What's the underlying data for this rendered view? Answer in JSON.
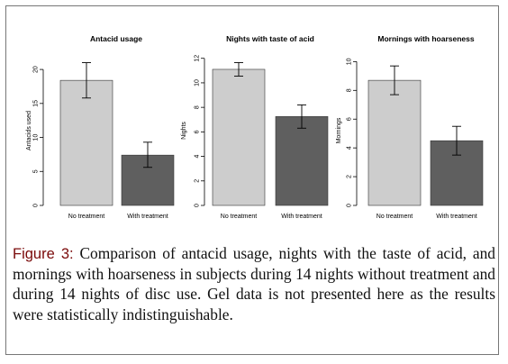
{
  "colors": {
    "no_treatment_bar": "#cdcdcd",
    "with_treatment_bar": "#5f5f5f",
    "frame": "#777777",
    "caption_lead": "#7a0a0a"
  },
  "caption": {
    "lead": "Figure 3:",
    "text": " Comparison of antacid usage, nights with the taste of acid, and mornings with hoarseness in subjects during 14 nights without treatment and during 14 nights of disc use. Gel data is not presented here as the results were statistically indistinguishable."
  },
  "chart_data": [
    {
      "type": "bar",
      "title": "Antacid usage",
      "ylabel": "Antacids used",
      "xlabel": "",
      "categories": [
        "No treatment",
        "With treatment"
      ],
      "values": [
        18.4,
        7.4
      ],
      "error_low": [
        15.8,
        5.6
      ],
      "error_high": [
        21.0,
        9.3
      ],
      "ylim": [
        0,
        22
      ],
      "yticks": [
        0,
        5,
        10,
        15,
        20
      ]
    },
    {
      "type": "bar",
      "title": "Nights with taste of acid",
      "ylabel": "Nights",
      "xlabel": "",
      "categories": [
        "No treatment",
        "With treatment"
      ],
      "values": [
        11.1,
        7.25
      ],
      "error_low": [
        10.55,
        6.3
      ],
      "error_high": [
        11.65,
        8.2
      ],
      "ylim": [
        0,
        12.2
      ],
      "yticks": [
        0,
        2,
        4,
        6,
        8,
        10,
        12
      ]
    },
    {
      "type": "bar",
      "title": "Mornings with hoarseness",
      "ylabel": "Mornings",
      "xlabel": "",
      "categories": [
        "No treatment",
        "With treatment"
      ],
      "values": [
        8.7,
        4.5
      ],
      "error_low": [
        7.7,
        3.5
      ],
      "error_high": [
        9.7,
        5.5
      ],
      "ylim": [
        0,
        10.4
      ],
      "yticks": [
        0,
        2,
        4,
        6,
        8,
        10
      ]
    }
  ]
}
